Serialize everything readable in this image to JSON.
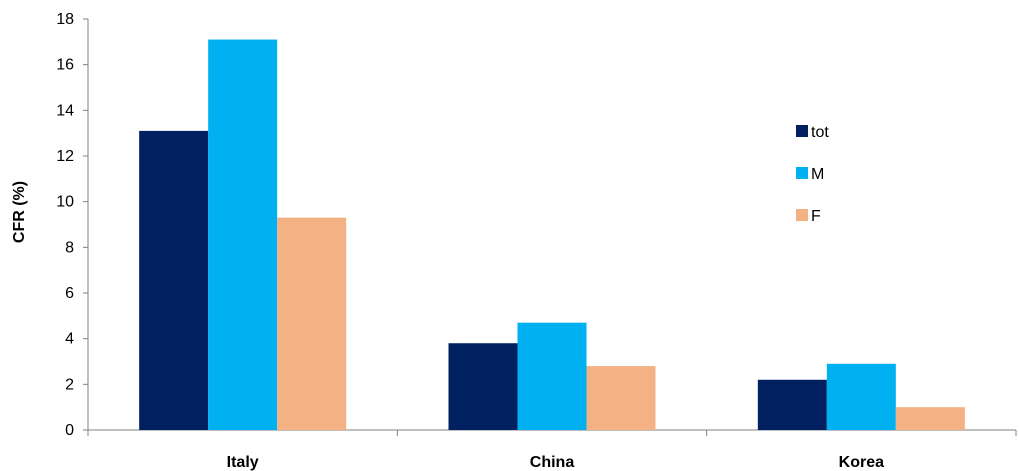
{
  "chart_data": {
    "type": "bar",
    "categories": [
      "Italy",
      "China",
      "Korea"
    ],
    "series": [
      {
        "name": "tot",
        "values": [
          13.1,
          3.8,
          2.2
        ],
        "color": "#002060"
      },
      {
        "name": "M",
        "values": [
          17.1,
          4.7,
          2.9
        ],
        "color": "#00b0f0"
      },
      {
        "name": "F",
        "values": [
          9.3,
          2.8,
          1.0
        ],
        "color": "#f4b183"
      }
    ],
    "title": "",
    "xlabel": "",
    "ylabel": "CFR (%)",
    "ylim": [
      0,
      18
    ],
    "yticks": [
      0,
      2,
      4,
      6,
      8,
      10,
      12,
      14,
      16,
      18
    ],
    "grid": false,
    "legend_position": "right"
  }
}
